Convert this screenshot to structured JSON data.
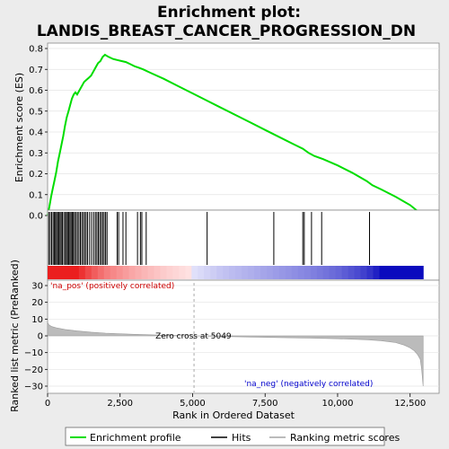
{
  "title_line1": "Enrichment plot:",
  "title_line2": "LANDIS_BREAST_CANCER_PROGRESSION_DN",
  "colors": {
    "enrichment": "#00dd00",
    "hits": "#000000",
    "metric": "#bbbbbb",
    "pos_label": "#cc0000",
    "neg_label": "#0000cc"
  },
  "chart_data": [
    {
      "type": "line",
      "ylabel": "Enrichment score (ES)",
      "ylim": [
        0,
        0.8
      ],
      "yticks": [
        "0.0",
        "0.1",
        "0.2",
        "0.3",
        "0.4",
        "0.5",
        "0.6",
        "0.7",
        "0.8"
      ],
      "xlim": [
        0,
        13500
      ],
      "series": [
        {
          "name": "Enrichment profile",
          "x": [
            0,
            60,
            120,
            180,
            240,
            300,
            360,
            420,
            480,
            540,
            600,
            660,
            720,
            780,
            840,
            900,
            960,
            1020,
            1100,
            1180,
            1260,
            1340,
            1420,
            1500,
            1580,
            1660,
            1740,
            1820,
            1900,
            1980,
            2100,
            2250,
            2400,
            2550,
            2700,
            2850,
            3000,
            3150,
            3300,
            3450,
            3600,
            4000,
            4500,
            5000,
            5500,
            6000,
            6500,
            7000,
            7500,
            8000,
            8500,
            8800,
            9000,
            9200,
            9500,
            10000,
            10500,
            11000,
            11200,
            11500,
            12000,
            12500,
            12950
          ],
          "y": [
            0.0,
            0.04,
            0.09,
            0.13,
            0.17,
            0.21,
            0.26,
            0.3,
            0.34,
            0.38,
            0.43,
            0.47,
            0.5,
            0.53,
            0.56,
            0.58,
            0.59,
            0.58,
            0.6,
            0.62,
            0.64,
            0.65,
            0.66,
            0.67,
            0.69,
            0.71,
            0.73,
            0.74,
            0.76,
            0.77,
            0.76,
            0.75,
            0.745,
            0.74,
            0.735,
            0.725,
            0.715,
            0.708,
            0.7,
            0.69,
            0.68,
            0.655,
            0.62,
            0.585,
            0.55,
            0.515,
            0.48,
            0.445,
            0.41,
            0.375,
            0.34,
            0.32,
            0.3,
            0.285,
            0.27,
            0.24,
            0.205,
            0.165,
            0.145,
            0.125,
            0.09,
            0.05,
            0.0
          ]
        }
      ]
    },
    {
      "type": "hits",
      "hit_positions": [
        40,
        90,
        140,
        190,
        230,
        270,
        310,
        350,
        390,
        430,
        470,
        510,
        560,
        610,
        650,
        690,
        730,
        770,
        810,
        850,
        890,
        930,
        980,
        1030,
        1080,
        1130,
        1180,
        1230,
        1280,
        1330,
        1380,
        1450,
        1520,
        1590,
        1650,
        1700,
        1750,
        1800,
        1850,
        1900,
        1950,
        2000,
        2050,
        2400,
        2450,
        2600,
        2700,
        3100,
        3200,
        3250,
        3400,
        5500,
        7800,
        8800,
        8850,
        9100,
        9450,
        11100
      ]
    },
    {
      "type": "area",
      "xlabel": "Rank in Ordered Dataset",
      "ylabel": "Ranked list metric (PreRanked)",
      "ylim": [
        -30,
        30
      ],
      "yticks": [
        "30",
        "20",
        "10",
        "0",
        "−10",
        "−20",
        "−30"
      ],
      "xticks": [
        "0",
        "2,500",
        "5,000",
        "7,500",
        "10,000",
        "12,500"
      ],
      "x": [
        0,
        50,
        150,
        300,
        600,
        1000,
        1500,
        2000,
        3000,
        4000,
        5049,
        6000,
        7000,
        8000,
        9000,
        10000,
        11000,
        11500,
        12000,
        12300,
        12500,
        12650,
        12750,
        12850,
        12900,
        12950
      ],
      "values": [
        8,
        6.5,
        5.5,
        4.8,
        3.8,
        3.0,
        2.2,
        1.6,
        0.9,
        0.4,
        0,
        -0.4,
        -0.7,
        -1.0,
        -1.3,
        -1.7,
        -2.3,
        -2.9,
        -4.0,
        -5.5,
        -7.2,
        -9,
        -11,
        -14,
        -20,
        -30
      ],
      "zero_cross_label": "Zero cross at 5049",
      "zero_cross_rank": 5049,
      "pos_label": "'na_pos' (positively correlated)",
      "neg_label": "'na_neg' (negatively correlated)"
    }
  ],
  "legend": {
    "items": [
      {
        "label": "Enrichment profile"
      },
      {
        "label": "Hits"
      },
      {
        "label": "Ranking metric scores"
      }
    ]
  }
}
